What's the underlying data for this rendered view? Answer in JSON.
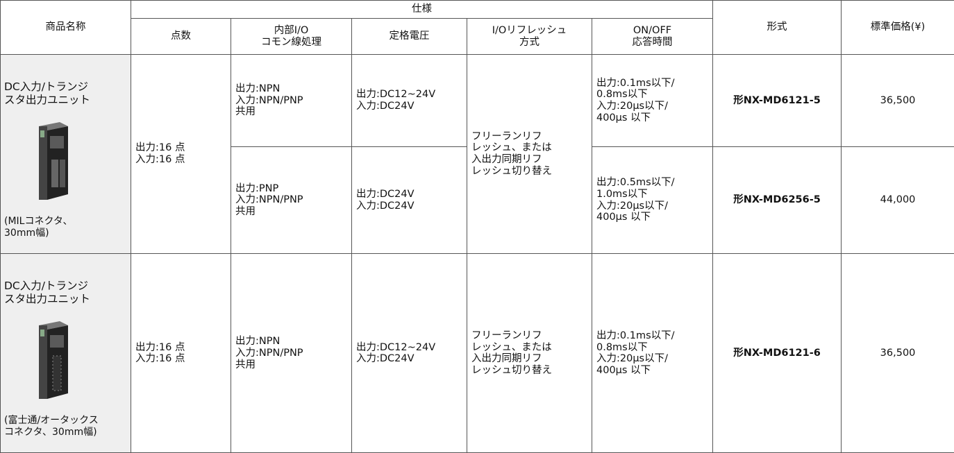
{
  "header": {
    "product_name": "商品名称",
    "spec": "仕様",
    "spec_columns": [
      "点数",
      "内部I/O\nコモン線処理",
      "定格電圧",
      "I/Oリフレッシュ\n方式",
      "ON/OFF\n応答時間"
    ],
    "model": "形式",
    "price": "標準価格(¥)"
  },
  "products": [
    {
      "name": "DC入力/トランジ\nスタ出力ユニット",
      "note": "(MILコネクタ、\n30mm幅)",
      "points": "出力:16 点\n入力:16 点",
      "refresh": "フリーランリフ\nレッシュ、または\n入出力同期リフ\nレッシュ切り替え",
      "variants": [
        {
          "common": "出力:NPN\n入力:NPN/PNP\n共用",
          "voltage": "出力:DC12~24V\n入力:DC24V",
          "response": "出力:0.1ms以下/\n0.8ms以下\n入力:20μs以下/\n400μs 以下",
          "model": "形NX-MD6121-5",
          "price": "36,500"
        },
        {
          "common": "出力:PNP\n入力:NPN/PNP\n共用",
          "voltage": "出力:DC24V\n入力:DC24V",
          "response": "出力:0.5ms以下/\n1.0ms以下\n入力:20μs以下/\n400μs 以下",
          "model": "形NX-MD6256-5",
          "price": "44,000"
        }
      ]
    },
    {
      "name": "DC入力/トランジ\nスタ出力ユニット",
      "note": "(富士通/オータックス\nコネクタ、30mm幅)",
      "points": "出力:16 点\n入力:16 点",
      "refresh": "フリーランリフ\nレッシュ、または\n入出力同期リフ\nレッシュ切り替え",
      "variants": [
        {
          "common": "出力:NPN\n入力:NPN/PNP\n共用",
          "voltage": "出力:DC12~24V\n入力:DC24V",
          "response": "出力:0.1ms以下/\n0.8ms以下\n入力:20μs以下/\n400μs 以下",
          "model": "形NX-MD6121-6",
          "price": "36,500"
        }
      ]
    }
  ]
}
